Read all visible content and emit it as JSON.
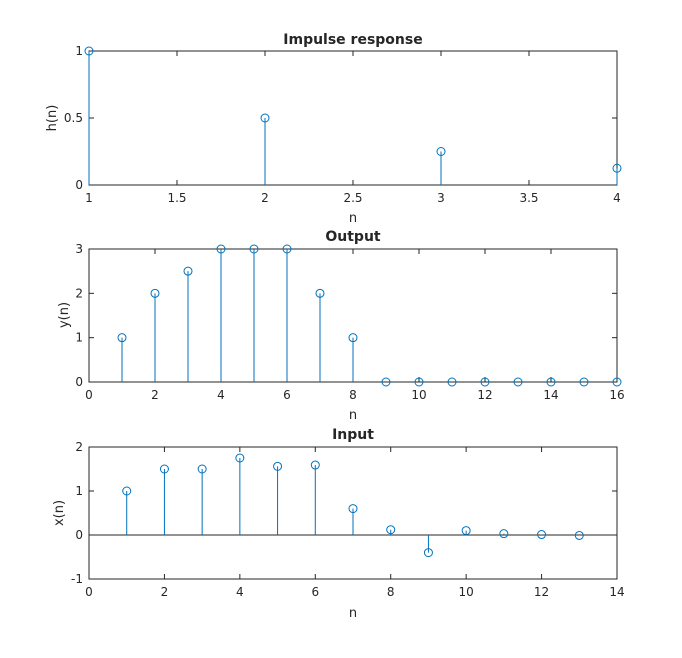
{
  "chart_data": [
    {
      "type": "stem",
      "title": "Impulse response",
      "xlabel": "n",
      "ylabel": "h(n)",
      "xlim": [
        1,
        4
      ],
      "ylim": [
        0,
        1
      ],
      "xticks": [
        "1",
        "1.5",
        "2",
        "2.5",
        "3",
        "3.5",
        "4"
      ],
      "yticks": [
        "0",
        "0.5",
        "1"
      ],
      "x": [
        1,
        2,
        3,
        4
      ],
      "y": [
        1,
        0.5,
        0.25,
        0.125
      ],
      "color": "#0072BD"
    },
    {
      "type": "stem",
      "title": "Output",
      "xlabel": "n",
      "ylabel": "y(n)",
      "xlim": [
        0,
        16
      ],
      "ylim": [
        0,
        3
      ],
      "xticks": [
        "0",
        "2",
        "4",
        "6",
        "8",
        "10",
        "12",
        "14",
        "16"
      ],
      "yticks": [
        "0",
        "1",
        "2",
        "3"
      ],
      "x": [
        1,
        2,
        3,
        4,
        5,
        6,
        7,
        8,
        9,
        10,
        11,
        12,
        13,
        14,
        15,
        16
      ],
      "y": [
        1,
        2,
        2.5,
        3,
        3,
        3,
        2,
        1,
        0,
        0,
        0,
        0,
        0,
        0,
        0,
        0
      ],
      "color": "#0072BD"
    },
    {
      "type": "stem",
      "title": "Input",
      "xlabel": "n",
      "ylabel": "x(n)",
      "xlim": [
        0,
        14
      ],
      "ylim": [
        -1,
        2
      ],
      "xticks": [
        "0",
        "2",
        "4",
        "6",
        "8",
        "10",
        "12",
        "14"
      ],
      "yticks": [
        "-1",
        "0",
        "1",
        "2"
      ],
      "x": [
        1,
        2,
        3,
        4,
        5,
        6,
        7,
        8,
        9,
        10,
        11,
        12,
        13
      ],
      "y": [
        1,
        1.5,
        1.5,
        1.75,
        1.56,
        1.59,
        0.6,
        0.12,
        -0.4,
        0.1,
        0.03,
        0.01,
        -0.01
      ],
      "color": "#0072BD"
    }
  ]
}
